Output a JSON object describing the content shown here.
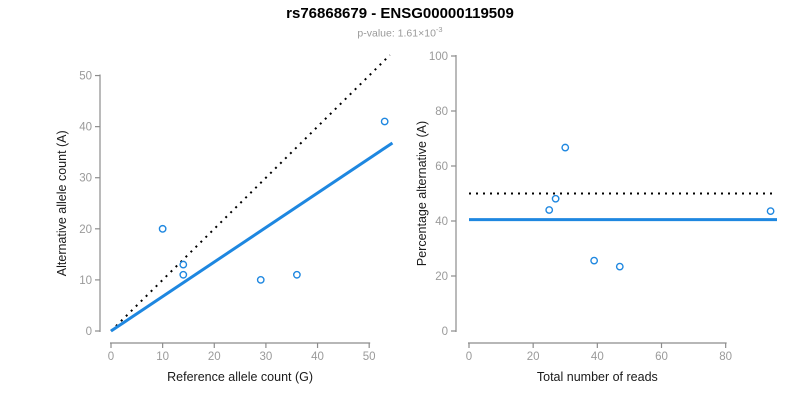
{
  "header": {
    "title": "rs76868679 - ENSG00000119509",
    "subtitle_prefix": "p-value: 1.61×10",
    "subtitle_exponent": "-3"
  },
  "colors": {
    "accent_blue": "#1E87E0",
    "axis_gray": "#8c8c8c",
    "tick_label_gray": "#9a9a9a",
    "axis_title_dark": "#1a1a1a",
    "dotted_black": "#000000",
    "background": "#ffffff"
  },
  "chart_data": [
    {
      "type": "scatter",
      "title": "",
      "xlabel": "Reference allele count (G)",
      "ylabel": "Alternative allele count (A)",
      "xlim": [
        0,
        55
      ],
      "ylim": [
        0,
        55
      ],
      "xticks": [
        0,
        10,
        20,
        30,
        40,
        50
      ],
      "yticks": [
        0,
        10,
        20,
        30,
        40,
        50
      ],
      "grid": false,
      "legend": "none",
      "marker": {
        "shape": "open-circle",
        "color": "#1E87E0",
        "radius": 3.2
      },
      "points": [
        {
          "x": 10,
          "y": 20
        },
        {
          "x": 14,
          "y": 13
        },
        {
          "x": 14,
          "y": 11
        },
        {
          "x": 29,
          "y": 10
        },
        {
          "x": 36,
          "y": 11
        },
        {
          "x": 53,
          "y": 41
        }
      ],
      "lines": [
        {
          "name": "identity-line",
          "style": "dotted",
          "color": "#000000",
          "width": 2,
          "x1": 0,
          "y1": 0,
          "x2": 54,
          "y2": 54
        },
        {
          "name": "fit-line",
          "style": "solid",
          "color": "#1E87E0",
          "width": 3,
          "x1": 0,
          "y1": 0,
          "x2": 54.5,
          "y2": 36.8
        }
      ]
    },
    {
      "type": "scatter",
      "title": "",
      "xlabel": "Total number of reads",
      "ylabel": "Percentage alternative (A)",
      "xlim": [
        0,
        96
      ],
      "ylim": [
        0,
        100
      ],
      "xticks": [
        0,
        20,
        40,
        60,
        80
      ],
      "yticks": [
        0,
        20,
        40,
        60,
        80,
        100
      ],
      "grid": false,
      "legend": "none",
      "marker": {
        "shape": "open-circle",
        "color": "#1E87E0",
        "radius": 3.2
      },
      "points": [
        {
          "x": 30,
          "y": 66.7
        },
        {
          "x": 27,
          "y": 48.1
        },
        {
          "x": 25,
          "y": 44.0
        },
        {
          "x": 39,
          "y": 25.6
        },
        {
          "x": 47,
          "y": 23.4
        },
        {
          "x": 94,
          "y": 43.6
        }
      ],
      "lines": [
        {
          "name": "expected-percentage-line",
          "style": "dotted",
          "color": "#000000",
          "width": 2,
          "x1": 0,
          "y1": 50,
          "x2": 96,
          "y2": 50
        },
        {
          "name": "observed-percentage-line",
          "style": "solid",
          "color": "#1E87E0",
          "width": 3,
          "x1": 0,
          "y1": 40.5,
          "x2": 96,
          "y2": 40.5
        }
      ]
    }
  ]
}
